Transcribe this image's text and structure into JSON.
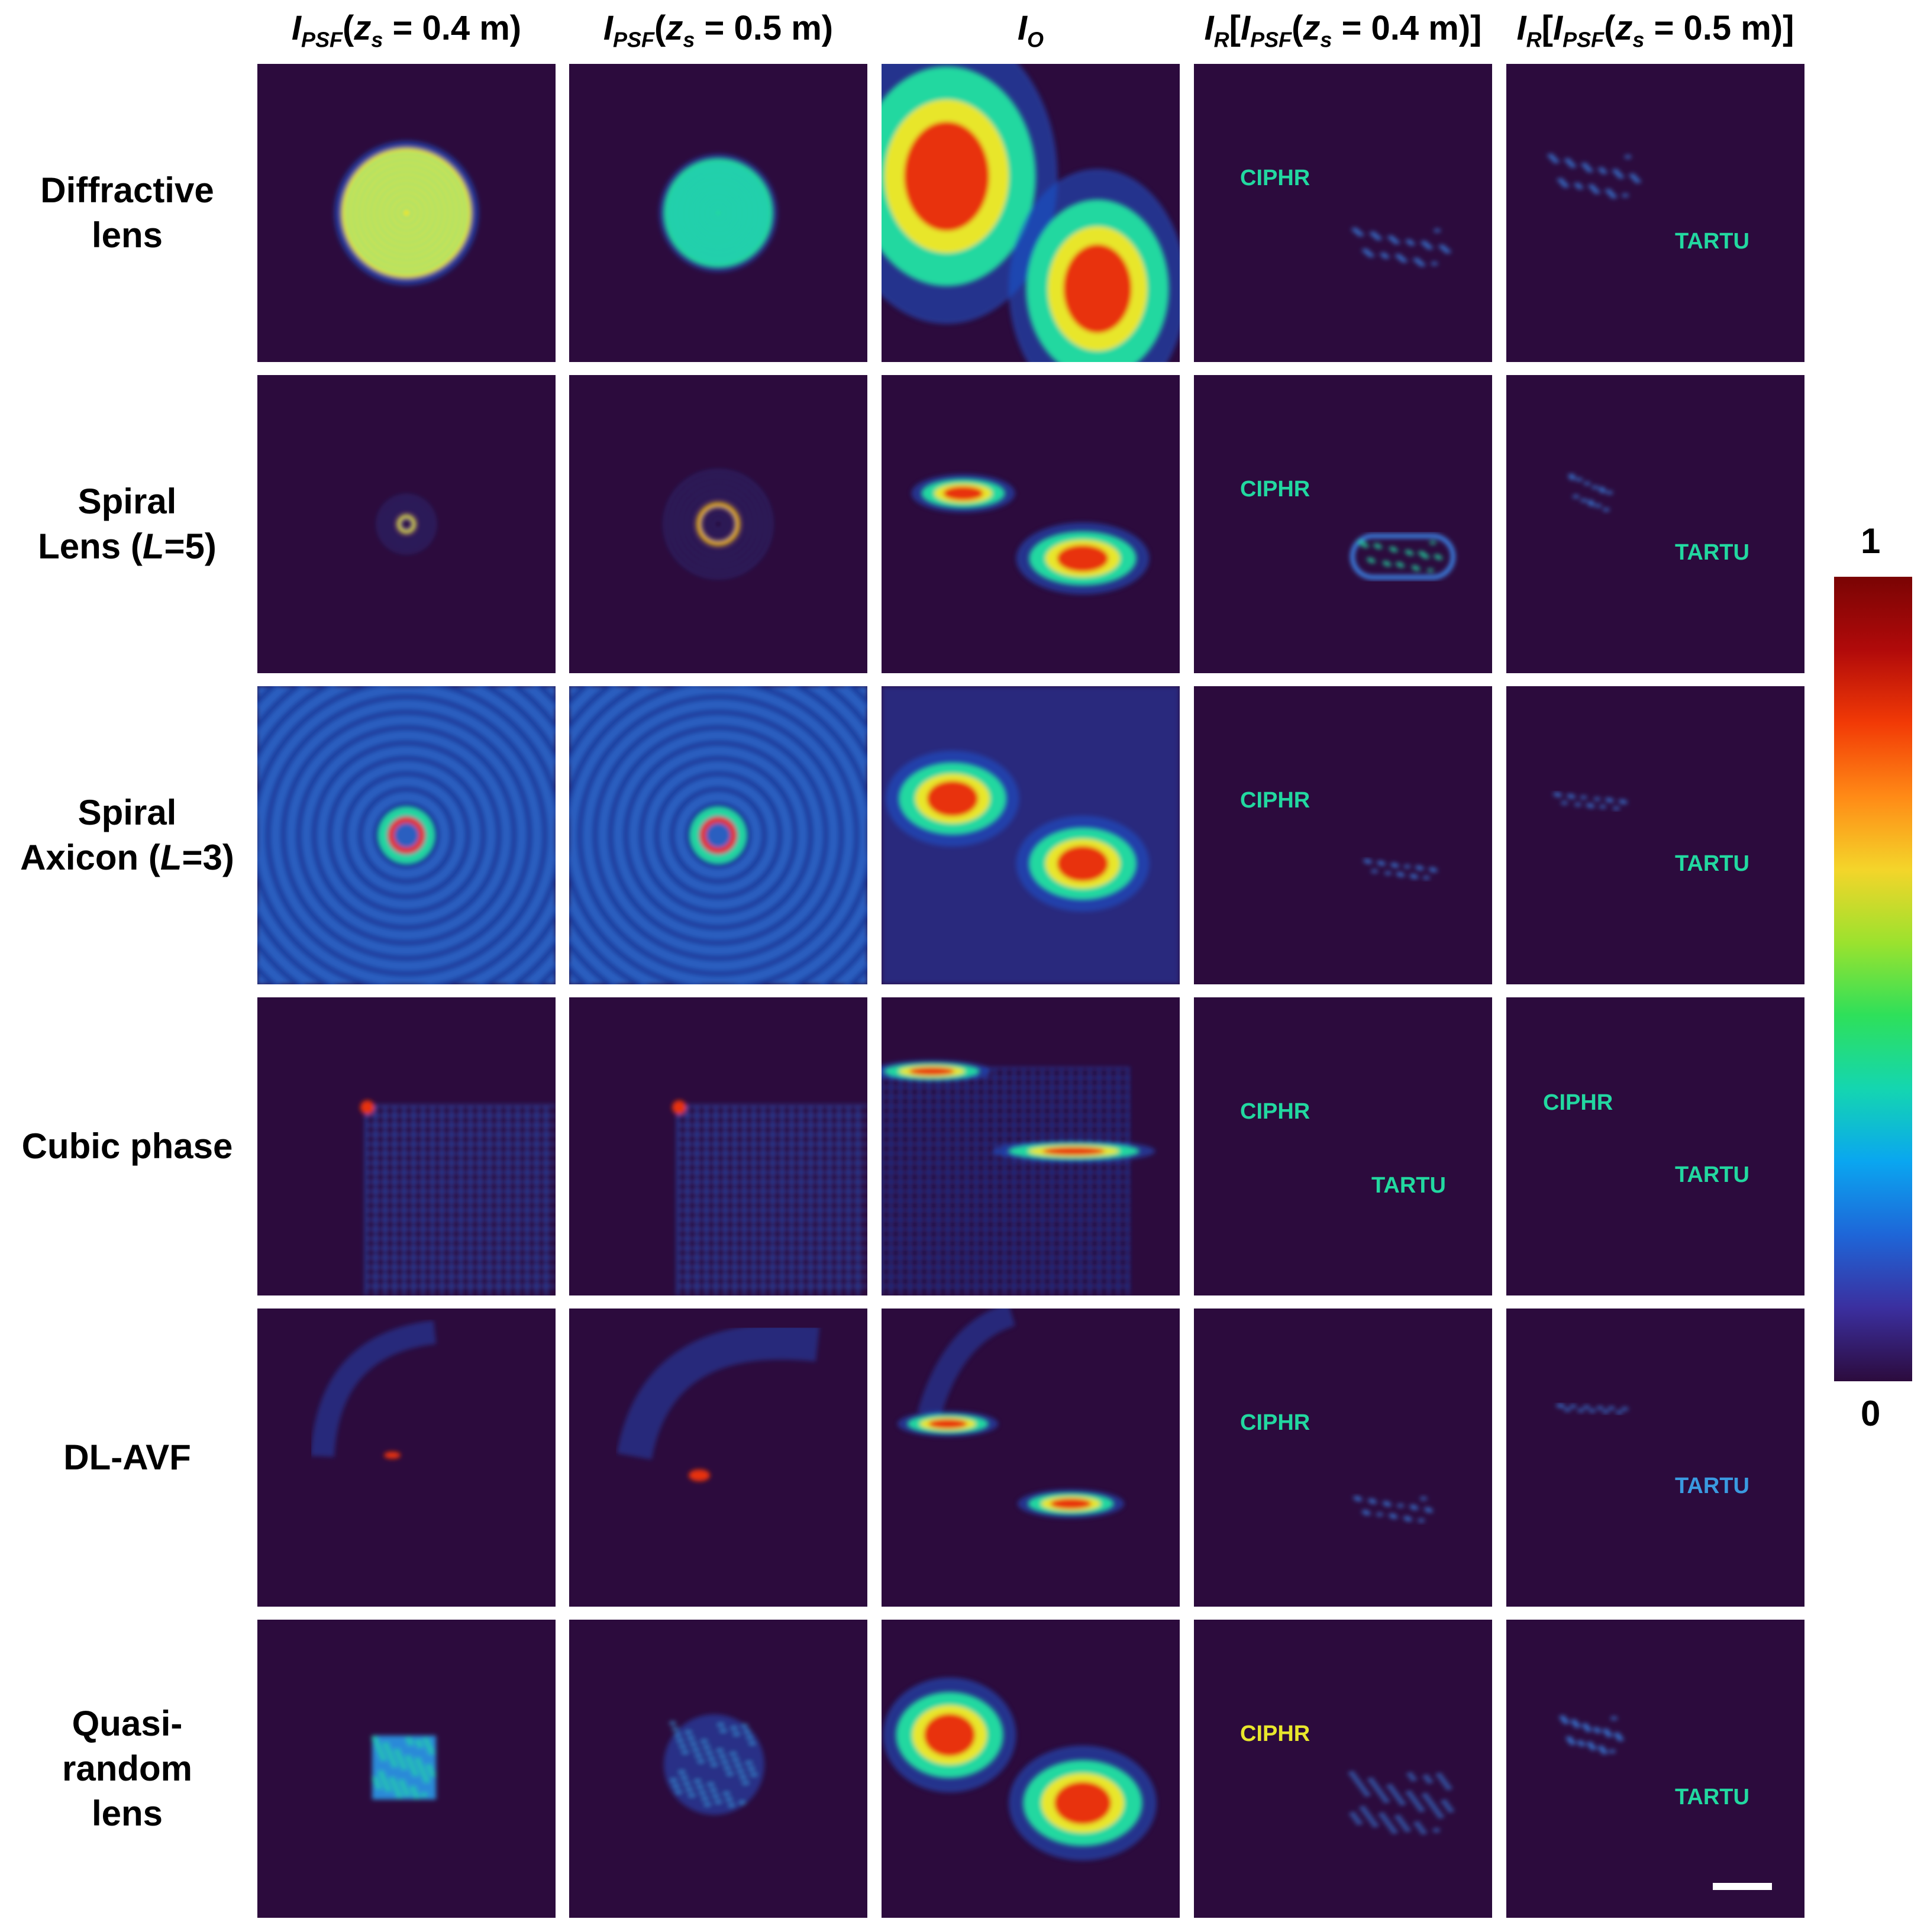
{
  "columns": [
    {
      "main": "I",
      "sub": "PSF",
      "rest": "(z",
      "zsub": "s",
      "tail": " = 0.4 m)"
    },
    {
      "main": "I",
      "sub": "PSF",
      "rest": "(z",
      "zsub": "s",
      "tail": " = 0.5 m)"
    },
    {
      "main": "I",
      "sub": "O",
      "rest": "",
      "zsub": "",
      "tail": ""
    },
    {
      "main": "I",
      "sub": "R",
      "rest": "[I",
      "sub2": "PSF",
      "rest2": "(z",
      "zsub": "s",
      "tail": " = 0.4 m)]"
    },
    {
      "main": "I",
      "sub": "R",
      "rest": "[I",
      "sub2": "PSF",
      "rest2": "(z",
      "zsub": "s",
      "tail": " = 0.5 m)]"
    }
  ],
  "rows": [
    {
      "line1": "Diffractive",
      "line2": "lens",
      "line3": ""
    },
    {
      "line1": "Spiral",
      "line2": "Lens (",
      "italic": "L",
      "after": "=5)",
      "line3": ""
    },
    {
      "line1": "Spiral",
      "line2": "Axicon (",
      "italic": "L",
      "after": "=3)",
      "line3": ""
    },
    {
      "line1": "Cubic phase",
      "line2": "",
      "line3": ""
    },
    {
      "line1": "DL-AVF",
      "line2": "",
      "line3": ""
    },
    {
      "line1": "Quasi-",
      "line2": "random",
      "line3": "lens"
    }
  ],
  "panel_text": {
    "word1": "CIPHR",
    "word2": "TARTU"
  },
  "colorbar": {
    "max_label": "1",
    "min_label": "0",
    "colors": [
      "#2c0b3d",
      "#3b2f9f",
      "#1e66d8",
      "#0aa6f0",
      "#14d6b0",
      "#2ee05a",
      "#9be22e",
      "#f4d52a",
      "#ff8a16",
      "#f23a06",
      "#b10a0a",
      "#7a0404"
    ]
  },
  "colors": {
    "background": "#2c0b3d",
    "low": "#1e56d0",
    "mid": "#22d8a0",
    "high": "#e8e62c",
    "peak": "#e8300a"
  }
}
